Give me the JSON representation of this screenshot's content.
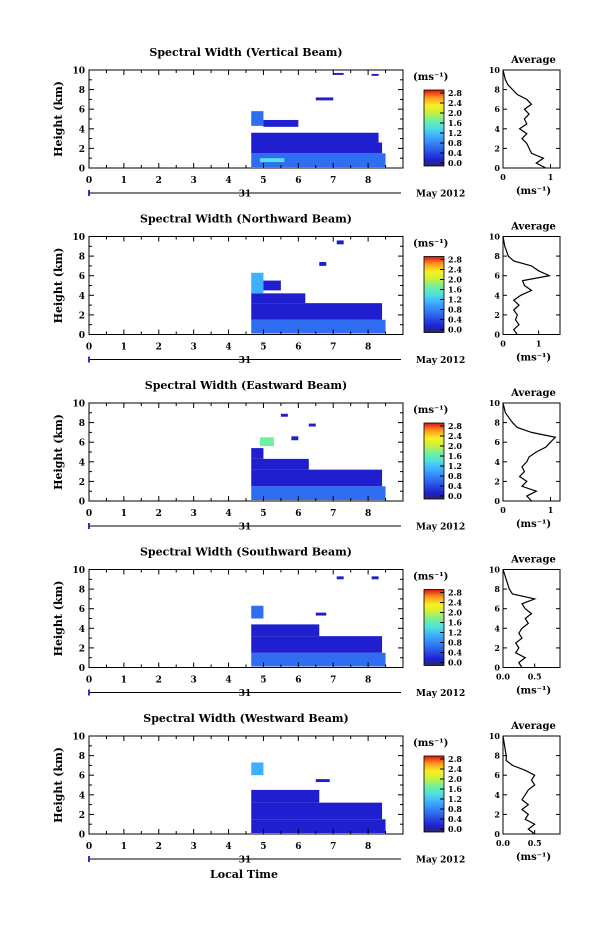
{
  "panels": [
    {
      "title": "Spectral Width (Vertical Beam)",
      "avg_xticks": [
        "0",
        "1"
      ]
    },
    {
      "title": "Spectral Width (Northward Beam)",
      "avg_xticks": [
        "0",
        "1"
      ]
    },
    {
      "title": "Spectral Width (Eastward Beam)",
      "avg_xticks": [
        "0",
        "1"
      ]
    },
    {
      "title": "Spectral Width (Southward Beam)",
      "avg_xticks": [
        "0.0",
        "0.5"
      ]
    },
    {
      "title": "Spectral Width (Westward Beam)",
      "avg_xticks": [
        "0.0",
        "0.5"
      ]
    }
  ],
  "ylabel": "Height (km)",
  "yticks": [
    "0",
    "2",
    "4",
    "6",
    "8",
    "10"
  ],
  "xticks": [
    "0",
    "1",
    "2",
    "3",
    "4",
    "5",
    "6",
    "7",
    "8"
  ],
  "day_label": "31",
  "month_label": "May 2012",
  "cbar_unit": "(ms⁻¹)",
  "cbar_ticks": [
    "0.0",
    "0.4",
    "0.8",
    "1.2",
    "1.6",
    "2.0",
    "2.4",
    "2.8"
  ],
  "avg_title": "Average",
  "avg_xlabel": "(ms⁻¹)",
  "xlabel": "Local Time",
  "chart_data": {
    "type": "heatmap",
    "x_range": [
      0,
      9
    ],
    "y_range": [
      0,
      10
    ],
    "color_range": [
      0.0,
      2.8
    ],
    "colorscale": [
      "#3a3a6a",
      "#1f1fd0",
      "#2f6ef0",
      "#3fb0ff",
      "#4fe0e0",
      "#6ff0a0",
      "#c8f040",
      "#f8f020",
      "#ffb020",
      "#ff5a10",
      "#e01010"
    ],
    "panels": [
      {
        "beam": "Vertical",
        "avg_xlim": [
          0,
          1.2
        ],
        "blocks": [
          [
            4.65,
            8.5,
            0.1,
            1.5,
            0.45
          ],
          [
            4.65,
            8.4,
            1.5,
            2.6,
            0.35
          ],
          [
            4.65,
            8.3,
            2.6,
            3.6,
            0.3
          ],
          [
            4.65,
            5.0,
            4.3,
            5.8,
            0.6
          ],
          [
            5.0,
            6.0,
            4.2,
            4.9,
            0.3
          ],
          [
            6.5,
            7.0,
            6.9,
            7.2,
            0.2
          ],
          [
            4.9,
            5.6,
            0.6,
            1.0,
            1.1
          ],
          [
            7.0,
            7.3,
            9.5,
            9.7,
            0.2
          ],
          [
            8.1,
            8.3,
            9.4,
            9.6,
            0.2
          ]
        ],
        "profile": [
          [
            0.0,
            0.9
          ],
          [
            0.5,
            0.7
          ],
          [
            1.0,
            0.85
          ],
          [
            1.5,
            0.6
          ],
          [
            2.0,
            0.55
          ],
          [
            2.5,
            0.5
          ],
          [
            3.0,
            0.4
          ],
          [
            3.5,
            0.5
          ],
          [
            4.0,
            0.35
          ],
          [
            4.5,
            0.5
          ],
          [
            5.0,
            0.45
          ],
          [
            5.5,
            0.55
          ],
          [
            6.0,
            0.45
          ],
          [
            6.5,
            0.6
          ],
          [
            7.0,
            0.5
          ],
          [
            7.5,
            0.3
          ],
          [
            8.0,
            0.2
          ],
          [
            8.5,
            0.1
          ],
          [
            9.0,
            0.05
          ],
          [
            10.0,
            0.0
          ]
        ]
      },
      {
        "beam": "Northward",
        "avg_xlim": [
          0,
          1.6
        ],
        "blocks": [
          [
            4.65,
            8.5,
            0.1,
            1.5,
            0.45
          ],
          [
            4.65,
            8.4,
            1.5,
            3.2,
            0.3
          ],
          [
            4.65,
            6.2,
            3.2,
            4.2,
            0.25
          ],
          [
            4.65,
            5.0,
            4.2,
            6.3,
            0.7
          ],
          [
            5.0,
            5.5,
            4.5,
            5.5,
            0.3
          ],
          [
            6.6,
            6.8,
            7.0,
            7.4,
            0.2
          ],
          [
            7.1,
            7.3,
            9.2,
            9.6,
            0.2
          ]
        ],
        "profile": [
          [
            0.0,
            0.4
          ],
          [
            0.5,
            0.3
          ],
          [
            1.0,
            0.45
          ],
          [
            1.5,
            0.35
          ],
          [
            2.0,
            0.4
          ],
          [
            2.5,
            0.3
          ],
          [
            3.0,
            0.45
          ],
          [
            3.5,
            0.3
          ],
          [
            4.0,
            0.5
          ],
          [
            4.5,
            0.8
          ],
          [
            5.0,
            0.6
          ],
          [
            5.5,
            0.55
          ],
          [
            6.0,
            1.3
          ],
          [
            6.5,
            1.0
          ],
          [
            7.0,
            0.8
          ],
          [
            7.5,
            0.3
          ],
          [
            8.0,
            0.15
          ],
          [
            9.0,
            0.05
          ],
          [
            10.0,
            0.0
          ]
        ]
      },
      {
        "beam": "Eastward",
        "avg_xlim": [
          0,
          1.2
        ],
        "blocks": [
          [
            4.65,
            8.5,
            0.1,
            1.5,
            0.45
          ],
          [
            4.65,
            8.4,
            1.5,
            3.2,
            0.3
          ],
          [
            4.65,
            6.3,
            3.2,
            4.3,
            0.25
          ],
          [
            4.65,
            5.0,
            4.3,
            5.4,
            0.35
          ],
          [
            4.9,
            5.3,
            5.6,
            6.5,
            1.3
          ],
          [
            5.8,
            6.0,
            6.2,
            6.6,
            0.2
          ],
          [
            6.3,
            6.5,
            7.6,
            7.9,
            0.2
          ],
          [
            5.5,
            5.7,
            8.6,
            8.9,
            0.2
          ]
        ],
        "profile": [
          [
            0.0,
            0.6
          ],
          [
            0.5,
            0.5
          ],
          [
            1.0,
            0.7
          ],
          [
            1.5,
            0.4
          ],
          [
            2.0,
            0.5
          ],
          [
            2.5,
            0.35
          ],
          [
            3.0,
            0.45
          ],
          [
            3.5,
            0.4
          ],
          [
            4.0,
            0.5
          ],
          [
            4.5,
            0.55
          ],
          [
            5.0,
            0.7
          ],
          [
            5.5,
            0.9
          ],
          [
            6.0,
            1.0
          ],
          [
            6.5,
            1.1
          ],
          [
            7.0,
            0.6
          ],
          [
            7.5,
            0.3
          ],
          [
            8.0,
            0.2
          ],
          [
            9.0,
            0.05
          ],
          [
            10.0,
            0.0
          ]
        ]
      },
      {
        "beam": "Southward",
        "avg_xlim": [
          0,
          0.9
        ],
        "blocks": [
          [
            4.65,
            8.5,
            0.1,
            1.5,
            0.45
          ],
          [
            4.65,
            8.4,
            1.5,
            3.2,
            0.3
          ],
          [
            4.65,
            6.6,
            3.2,
            4.4,
            0.25
          ],
          [
            4.65,
            5.0,
            5.0,
            6.3,
            0.6
          ],
          [
            6.5,
            6.8,
            5.3,
            5.6,
            0.2
          ],
          [
            7.1,
            7.3,
            9.0,
            9.3,
            0.2
          ],
          [
            8.1,
            8.3,
            9.0,
            9.3,
            0.2
          ]
        ],
        "profile": [
          [
            0.0,
            0.3
          ],
          [
            0.5,
            0.25
          ],
          [
            1.0,
            0.35
          ],
          [
            1.5,
            0.2
          ],
          [
            2.0,
            0.25
          ],
          [
            2.5,
            0.2
          ],
          [
            3.0,
            0.3
          ],
          [
            3.5,
            0.25
          ],
          [
            4.0,
            0.3
          ],
          [
            4.5,
            0.4
          ],
          [
            5.0,
            0.35
          ],
          [
            5.5,
            0.45
          ],
          [
            6.0,
            0.35
          ],
          [
            6.5,
            0.3
          ],
          [
            7.0,
            0.5
          ],
          [
            7.5,
            0.15
          ],
          [
            8.0,
            0.1
          ],
          [
            9.0,
            0.05
          ],
          [
            10.0,
            0.0
          ]
        ]
      },
      {
        "beam": "Westward",
        "avg_xlim": [
          0,
          0.9
        ],
        "blocks": [
          [
            4.65,
            8.5,
            0.1,
            1.5,
            0.4
          ],
          [
            4.65,
            8.4,
            1.5,
            3.2,
            0.3
          ],
          [
            4.65,
            6.6,
            3.2,
            4.5,
            0.25
          ],
          [
            4.65,
            5.0,
            6.0,
            7.3,
            0.7
          ],
          [
            6.5,
            6.9,
            5.3,
            5.6,
            0.2
          ]
        ],
        "profile": [
          [
            0.0,
            0.5
          ],
          [
            0.5,
            0.4
          ],
          [
            1.0,
            0.5
          ],
          [
            1.5,
            0.35
          ],
          [
            2.0,
            0.4
          ],
          [
            2.5,
            0.3
          ],
          [
            3.0,
            0.4
          ],
          [
            3.5,
            0.3
          ],
          [
            4.0,
            0.35
          ],
          [
            4.5,
            0.4
          ],
          [
            5.0,
            0.5
          ],
          [
            5.5,
            0.45
          ],
          [
            6.0,
            0.5
          ],
          [
            6.5,
            0.35
          ],
          [
            7.0,
            0.15
          ],
          [
            7.5,
            0.05
          ],
          [
            8.0,
            0.05
          ],
          [
            10.0,
            0.0
          ]
        ]
      }
    ]
  }
}
